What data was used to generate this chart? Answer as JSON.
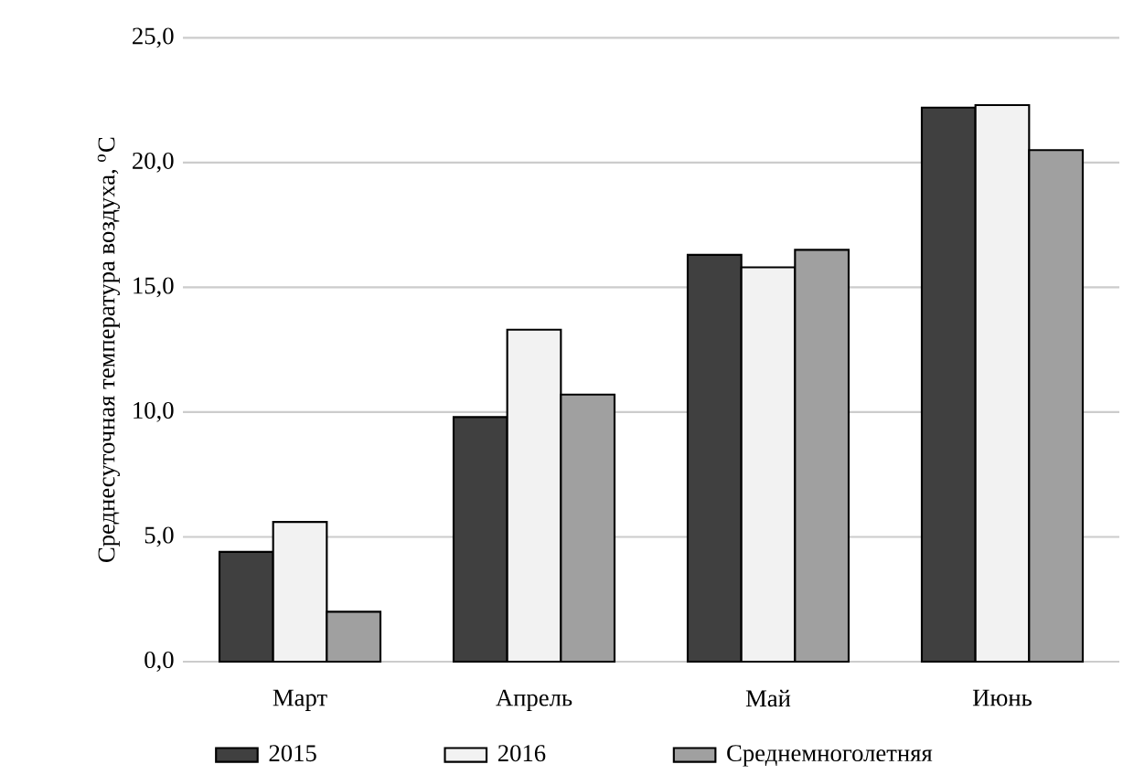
{
  "chart_data": {
    "type": "bar",
    "ylabel": "Среднесуточная  температура воздуха, $^{o}$C",
    "categories": [
      "Март",
      "Апрель",
      "Май",
      "Июнь"
    ],
    "series": [
      {
        "name": "2015",
        "color": "#404040",
        "values": [
          4.4,
          9.8,
          16.3,
          22.2
        ]
      },
      {
        "name": "2016",
        "color": "#f2f2f2",
        "values": [
          5.6,
          13.3,
          15.8,
          22.3
        ]
      },
      {
        "name": "Среднемноголетняя",
        "color": "#a0a0a0",
        "values": [
          2.0,
          10.7,
          16.5,
          20.5
        ]
      }
    ],
    "ylim": [
      0,
      25
    ],
    "yticks": [
      {
        "value": 0,
        "label": "0,0"
      },
      {
        "value": 5,
        "label": "5,0"
      },
      {
        "value": 10,
        "label": "10,0"
      },
      {
        "value": 15,
        "label": "15,0"
      },
      {
        "value": 20,
        "label": "20,0"
      },
      {
        "value": 25,
        "label": "25,0"
      }
    ],
    "grid": "y",
    "legend": "bottom"
  }
}
